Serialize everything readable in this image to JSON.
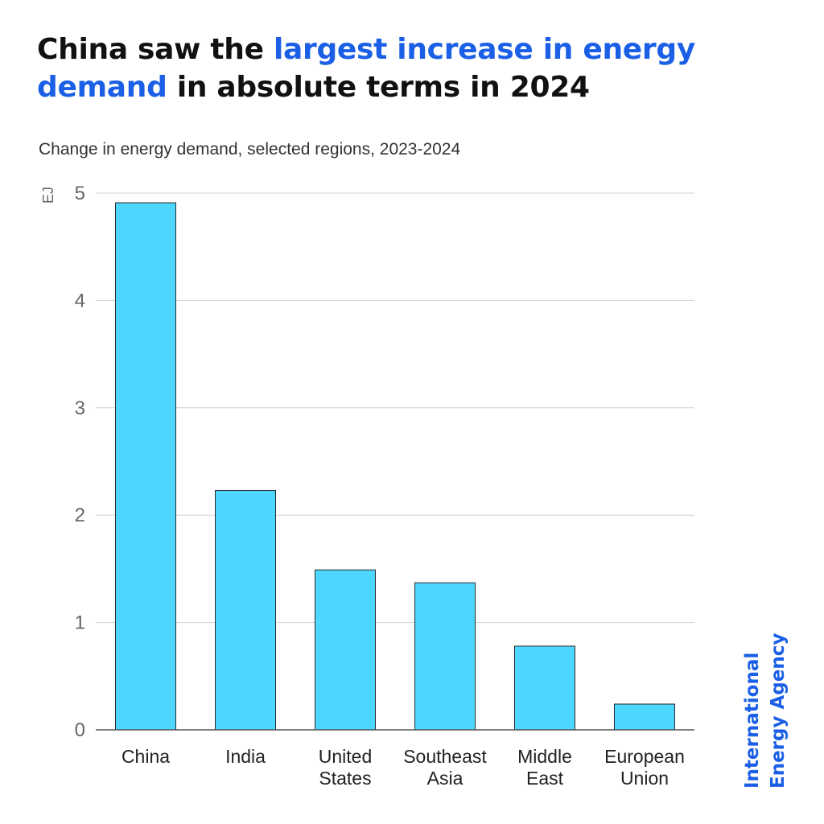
{
  "title": {
    "part1": "China saw the ",
    "accent": "largest increase in energy demand",
    "part2": " in absolute terms in 2024"
  },
  "subtitle": "Change in energy demand, selected regions, 2023-2024",
  "brand": {
    "line1": "International",
    "line2": "Energy Agency"
  },
  "colors": {
    "bar_fill": "#4dd6ff",
    "bar_stroke": "#2b2b2b",
    "grid": "#d0d0d0",
    "axis": "#555555",
    "accent": "#1b5fe6",
    "tick_text": "#666666",
    "category_text": "#222222"
  },
  "chart_data": {
    "type": "bar",
    "title": "China saw the largest increase in energy demand in absolute terms in 2024",
    "subtitle": "Change in energy demand, selected regions, 2023-2024",
    "ylabel": "EJ",
    "xlabel": "",
    "ylim": [
      0,
      5
    ],
    "yticks": [
      0,
      1,
      2,
      3,
      4,
      5
    ],
    "grid": true,
    "categories": [
      [
        "China"
      ],
      [
        "India"
      ],
      [
        "United",
        "States"
      ],
      [
        "Southeast",
        "Asia"
      ],
      [
        "Middle",
        "East"
      ],
      [
        "European",
        "Union"
      ]
    ],
    "values": [
      4.91,
      2.23,
      1.49,
      1.37,
      0.78,
      0.24
    ]
  }
}
